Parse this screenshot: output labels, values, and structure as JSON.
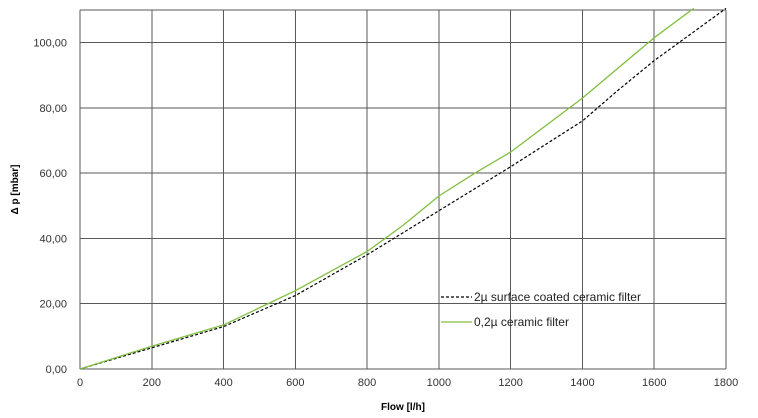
{
  "chart_data": {
    "type": "line",
    "title": "",
    "xlabel": "Flow [l/h]",
    "ylabel": "Δ p [mbar]",
    "xlim": [
      0,
      1800
    ],
    "ylim": [
      0,
      110
    ],
    "xticks": [
      0,
      200,
      400,
      600,
      800,
      1000,
      1200,
      1400,
      1600,
      1800
    ],
    "xtick_labels": [
      "0",
      "200",
      "400",
      "600",
      "800",
      "1000",
      "1200",
      "1400",
      "1600",
      "1800"
    ],
    "yticks": [
      0,
      20,
      40,
      60,
      80,
      100
    ],
    "ytick_labels": [
      "0,00",
      "20,00",
      "40,00",
      "60,00",
      "80,00",
      "100,00"
    ],
    "grid": true,
    "legend_position": "bottom-right",
    "series": [
      {
        "name": "2µ surface coated ceramic filter",
        "color": "#000000",
        "dash": "dashed",
        "x": [
          0,
          200,
          400,
          600,
          800,
          1000,
          1200,
          1400,
          1500,
          1600,
          1800
        ],
        "y": [
          0,
          6.5,
          13,
          22.5,
          35,
          48.5,
          62,
          76,
          85.5,
          94.5,
          110.5
        ]
      },
      {
        "name": "0,2µ ceramic filter",
        "color": "#7fbf3f",
        "dash": "solid",
        "x": [
          0,
          200,
          400,
          600,
          800,
          900,
          1000,
          1100,
          1200,
          1400,
          1600,
          1710
        ],
        "y": [
          0,
          7,
          13.5,
          24,
          36,
          44,
          53,
          60,
          66.5,
          83,
          101.5,
          110.5
        ]
      }
    ]
  }
}
